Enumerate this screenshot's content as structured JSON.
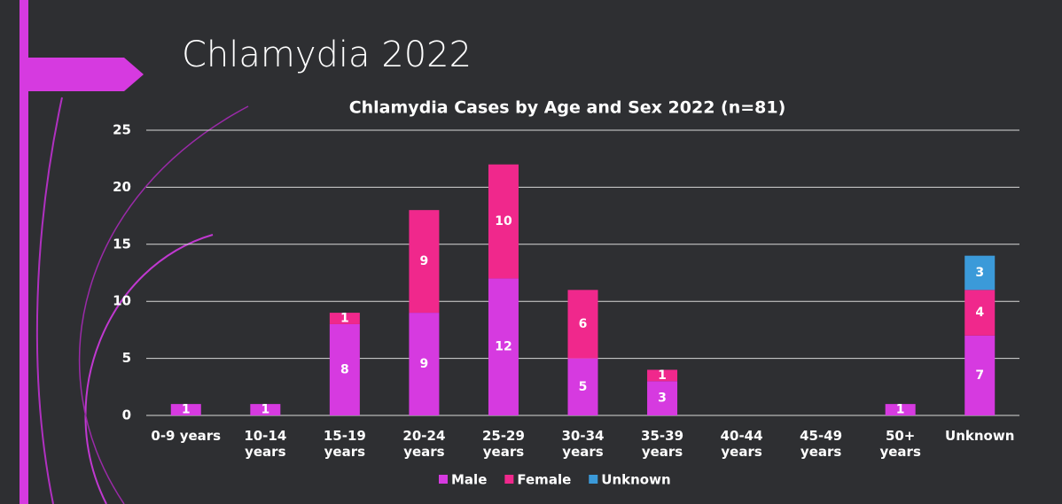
{
  "slide_title": "Chlamydia 2022",
  "chart_data": {
    "type": "stacked_bar",
    "title": "Chlamydia Cases by Age and Sex 2022 (n=81)",
    "categories": [
      "0-9 years",
      "10-14 years",
      "15-19 years",
      "20-24 years",
      "25-29 years",
      "30-34 years",
      "35-39 years",
      "40-44 years",
      "45-49 years",
      "50+ years",
      "Unknown"
    ],
    "series": [
      {
        "name": "Male",
        "color": "#d63ae0",
        "values": [
          1,
          1,
          8,
          9,
          12,
          5,
          3,
          0,
          0,
          1,
          7
        ]
      },
      {
        "name": "Female",
        "color": "#f0288c",
        "values": [
          0,
          0,
          1,
          9,
          10,
          6,
          1,
          0,
          0,
          0,
          4
        ]
      },
      {
        "name": "Unknown",
        "color": "#3b9ad9",
        "values": [
          0,
          0,
          0,
          0,
          0,
          0,
          0,
          0,
          0,
          0,
          3
        ]
      }
    ],
    "ylim": [
      0,
      25
    ],
    "yticks": [
      0,
      5,
      10,
      15,
      20,
      25
    ],
    "grid": true,
    "legend": "bottom"
  }
}
